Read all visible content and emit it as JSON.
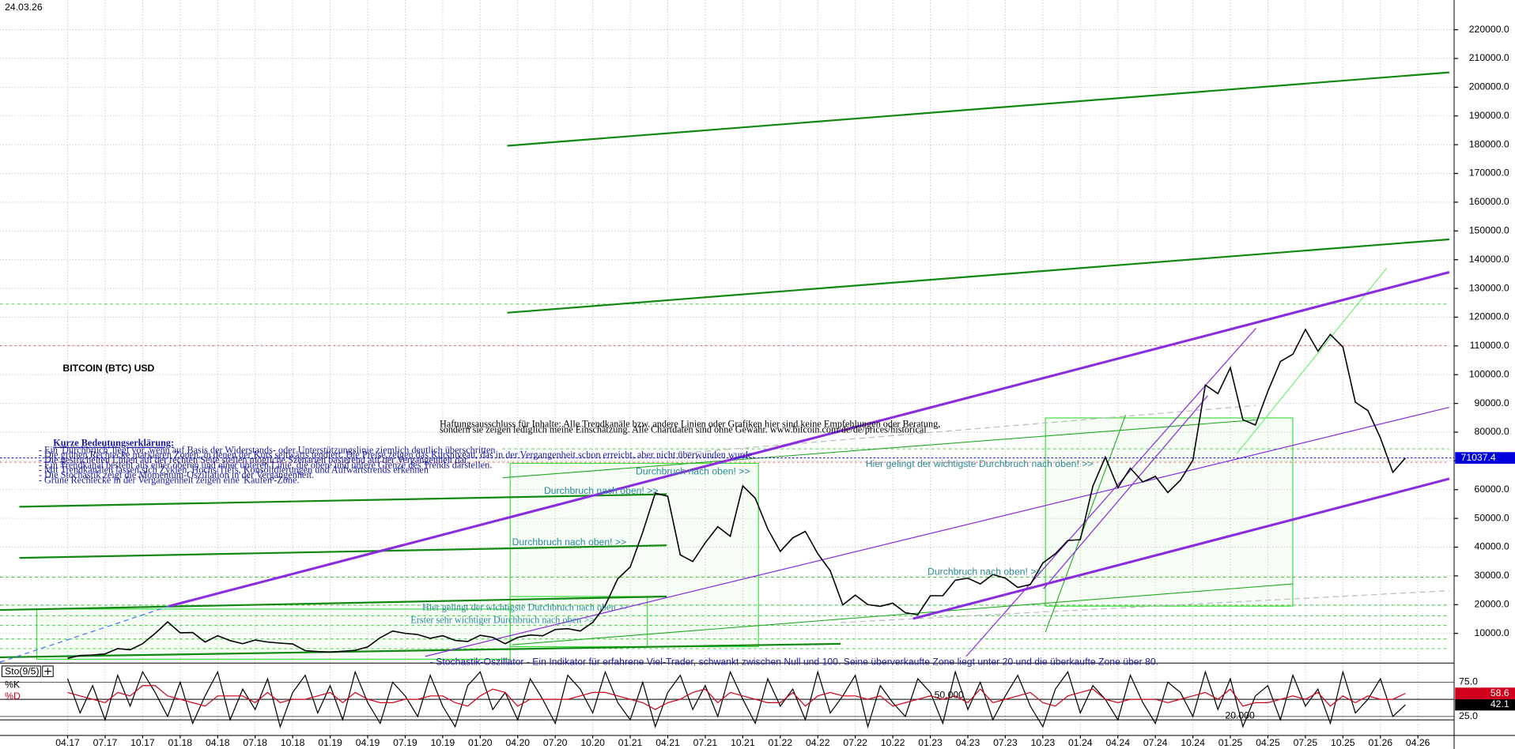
{
  "chart_data": [
    {
      "type": "line",
      "date": "24.03.26",
      "title": "BITCOIN (BTC) USD",
      "categories": [
        "04.17",
        null,
        null,
        "07.17",
        null,
        null,
        "10.17",
        null,
        null,
        "01.18",
        null,
        null,
        "04.18",
        null,
        null,
        "07.18",
        null,
        null,
        "10.18",
        null,
        null,
        "01.19",
        null,
        null,
        "04.19",
        null,
        null,
        "07.19",
        null,
        null,
        "10.19",
        null,
        null,
        "01.20",
        null,
        null,
        "04.20",
        null,
        null,
        "07.20",
        null,
        null,
        "10.20",
        null,
        null,
        "01.21",
        null,
        null,
        "04.21",
        null,
        null,
        "07.21",
        null,
        null,
        "10.21",
        null,
        null,
        "01.22",
        null,
        null,
        "04.22",
        null,
        null,
        "07.22",
        null,
        null,
        "10.22",
        null,
        null,
        "01.23",
        null,
        null,
        "04.23",
        null,
        null,
        "07.23",
        null,
        null,
        "10.23",
        null,
        null,
        "01.24",
        null,
        null,
        "04.24",
        null,
        null,
        "07.24",
        null,
        null,
        "10.24",
        null,
        null,
        "01.25",
        null,
        null,
        "04.25",
        null,
        null,
        "07.25",
        null,
        null,
        "10.25",
        null,
        null,
        "01.26",
        null,
        null,
        "04.26"
      ],
      "series": [
        {
          "color": "#000000",
          "values": [
            1350,
            2300,
            2500,
            2850,
            4700,
            4300,
            6400,
            10000,
            14000,
            10200,
            10300,
            7000,
            9200,
            7500,
            6400,
            7700,
            7000,
            6600,
            6300,
            4000,
            3700,
            3450,
            3800,
            4100,
            5300,
            8500,
            10800,
            10000,
            9600,
            8300,
            9200,
            7550,
            7200,
            9350,
            8600,
            6400,
            8600,
            9450,
            9150,
            11350,
            11650,
            10800,
            13800,
            19700,
            29000,
            33100,
            45200,
            58800,
            57700,
            37300,
            35000,
            41500,
            47100,
            43800,
            61300,
            57000,
            46300,
            38500,
            43200,
            45500,
            37700,
            31800,
            19900,
            23300,
            20000,
            19400,
            20500,
            17200,
            16500,
            23100,
            23100,
            28500,
            29200,
            27200,
            30500,
            29200,
            26000,
            27000,
            34500,
            37700,
            42300,
            42600,
            61200,
            71300,
            60700,
            67500,
            62700,
            64600,
            59000,
            63300,
            70200,
            96400,
            93400,
            102400,
            84300,
            82500,
            94200,
            104600,
            107100,
            115700,
            108200,
            114000,
            109600,
            90400,
            87500,
            78000,
            66000,
            71037.4,
            null
          ]
        }
      ],
      "last_value": 71037.4,
      "ylim": [
        0,
        230000
      ],
      "yticks": [
        {
          "value": 10000,
          "label": "10000.0"
        },
        {
          "value": 20000,
          "label": "20000.0"
        },
        {
          "value": 30000,
          "label": "30000.0"
        },
        {
          "value": 40000,
          "label": "40000.0"
        },
        {
          "value": 50000,
          "label": "50000.0"
        },
        {
          "value": 60000,
          "label": "60000.0"
        },
        {
          "value": 70000,
          "label": "70000.0"
        },
        {
          "value": 80000,
          "label": "80000.0"
        },
        {
          "value": 90000,
          "label": "90000.0"
        },
        {
          "value": 100000,
          "label": "100000.0"
        },
        {
          "value": 110000,
          "label": "110000.0"
        },
        {
          "value": 120000,
          "label": "120000.0"
        },
        {
          "value": 130000,
          "label": "130000.0"
        },
        {
          "value": 140000,
          "label": "140000.0"
        },
        {
          "value": 150000,
          "label": "150000.0"
        },
        {
          "value": 160000,
          "label": "160000.0"
        },
        {
          "value": 170000,
          "label": "170000.0"
        },
        {
          "value": 180000,
          "label": "180000.0"
        },
        {
          "value": 190000,
          "label": "190000.0"
        },
        {
          "value": 200000,
          "label": "200000.0"
        },
        {
          "value": 210000,
          "label": "210000.0"
        },
        {
          "value": 220000,
          "label": "220000.0"
        }
      ],
      "grid": true,
      "annotations": [
        "Durchbruch nach oben! >>",
        "Durchbruch nach oben! >>",
        "Durchbruch nach oben! >>",
        "Durchbruch nach oben! >>",
        "Hier gelingt der wichtigste Durchbruch nach oben! >>",
        "Hier gelingt der wichtigste Durchbruch nach oben >>",
        "Erster sehr wichtiger Durchbruch nach oben >>"
      ],
      "explanation_title": "Kurze Bedeutungserklärung:",
      "explanation": [
        "- Ein 'Durchbruch' liegt vor, wenn auf Basis der Widerstands- oder Unterstützungslinie ziemlich deutlich überschritten",
        "- Die grünen Rechtecke markieren Zonen, in denen der Kurs seitwärts tendiert. Die Preise zeigen das Kursniveau, das in der Vergangenheit schon erreicht, aber nicht überwunden wurde.",
        "- Die gestrichelten Linien auf der rechten Seite stellen mögliche Szenarien basierend auf der Vergangenheit dar.",
        "- Ein Trendkanal besteht aus einer oberen und einer unteren Linie, die obere und untere Grenze des Trends darstellen.",
        "- Mit Trendkanälen lassen sich Zyklen, Hochs/Tiefs, Konsolidierungen und Aufwärtstrends erkennen",
        "- Die Stochastik zeigt die Momentum-Oszillation in der Vergangenheit.",
        "- Grüne Rechtecke in der Vergangenheit zeigen eine 'Kaufen'-Zone."
      ],
      "disclaimer": [
        "Haftungsausschluss für Inhalte: Alle Trendkanäle bzw. andere Linien oder Grafiken hier sind keine Empfehlungen oder Beratung,",
        "sondern sie zeigen lediglich meine Einschätzung. Alle Chartdaten sind ohne Gewähr. www.bitcoin.com/de/de/prices/historical"
      ]
    },
    {
      "type": "line",
      "title": "Sto(9/5)",
      "series": [
        {
          "name": "%K",
          "color": "#000000",
          "values": [
            80,
            30,
            70,
            20,
            85,
            40,
            90,
            60,
            25,
            75,
            15,
            55,
            90,
            20,
            65,
            35,
            80,
            10,
            60,
            85,
            30,
            70,
            20,
            90,
            45,
            15,
            75,
            55,
            25,
            85,
            40,
            10,
            70,
            90,
            35,
            60,
            20,
            80,
            50,
            15,
            85,
            65,
            30,
            90,
            45,
            20,
            75,
            10,
            60,
            85,
            35,
            70,
            25,
            90,
            50,
            15,
            80,
            40,
            65,
            20,
            90,
            30,
            55,
            85,
            10,
            70,
            45,
            25,
            80,
            60,
            15,
            90,
            35,
            75,
            20,
            55,
            85,
            40,
            10,
            65,
            90,
            30,
            70,
            50,
            20,
            85,
            45,
            15,
            75,
            60,
            25,
            90,
            35,
            80,
            10,
            55,
            70,
            20,
            85,
            40,
            65,
            15,
            90,
            30,
            50,
            80,
            25,
            42.1,
            null
          ]
        },
        {
          "name": "%D",
          "color": "#d0021b",
          "values": [
            60,
            55,
            50,
            45,
            60,
            55,
            70,
            70,
            55,
            50,
            45,
            40,
            55,
            55,
            55,
            45,
            60,
            45,
            50,
            50,
            55,
            60,
            45,
            60,
            50,
            45,
            45,
            50,
            50,
            55,
            55,
            45,
            40,
            55,
            65,
            60,
            40,
            50,
            50,
            50,
            50,
            55,
            60,
            60,
            55,
            50,
            45,
            35,
            45,
            50,
            60,
            65,
            45,
            60,
            55,
            50,
            45,
            45,
            60,
            40,
            55,
            60,
            55,
            55,
            50,
            55,
            40,
            45,
            50,
            55,
            50,
            55,
            45,
            65,
            45,
            50,
            55,
            60,
            45,
            40,
            55,
            60,
            65,
            50,
            45,
            50,
            50,
            50,
            45,
            50,
            55,
            60,
            50,
            65,
            40,
            45,
            45,
            50,
            55,
            50,
            60,
            40,
            55,
            45,
            55,
            50,
            50,
            58.6,
            null
          ]
        }
      ],
      "ylim": [
        0,
        100
      ],
      "yticks": [
        {
          "value": 75,
          "label": "75.0"
        },
        {
          "value": 25,
          "label": "25.0"
        }
      ],
      "levels": [
        {
          "value": 50,
          "label": "50.000"
        },
        {
          "value": 20,
          "label": "20.000"
        }
      ],
      "description": "- Stochastik-Oszillator - Ein Indikator für erfahrene Viel-Trader, schwankt zwischen Null und 100. Seine überverkaufte Zone liegt unter 20 und die überkaufte Zone über 80."
    }
  ]
}
